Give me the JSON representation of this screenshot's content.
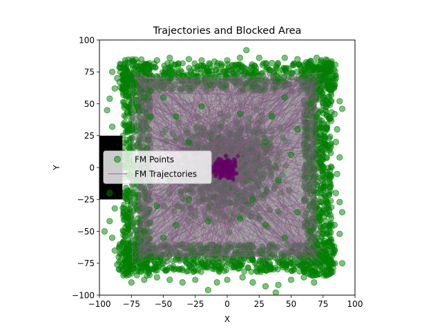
{
  "chart_data": {
    "type": "scatter",
    "title": "Trajectories and Blocked Area",
    "xlabel": "X",
    "ylabel": "Y",
    "xlim": [
      -100,
      100
    ],
    "ylim": [
      -100,
      100
    ],
    "xticks": [
      -100,
      -75,
      -50,
      -25,
      0,
      25,
      50,
      75,
      100
    ],
    "yticks": [
      -100,
      -75,
      -50,
      -25,
      0,
      25,
      50,
      75,
      100
    ],
    "xtick_labels": [
      "−100",
      "−75",
      "−50",
      "−25",
      "0",
      "25",
      "50",
      "75",
      "100"
    ],
    "ytick_labels": [
      "−100",
      "−75",
      "−50",
      "−25",
      "0",
      "25",
      "50",
      "75",
      "100"
    ],
    "grid": false,
    "legend_position": "center-left",
    "blocked_area": {
      "x": [
        -100,
        -82
      ],
      "y": [
        -25,
        25
      ],
      "color": "#000000"
    },
    "dense_core": {
      "x": [
        -15,
        12
      ],
      "y": [
        -14,
        14
      ],
      "color": "#660066"
    },
    "series": [
      {
        "name": "FM Points",
        "kind": "scatter",
        "color": "#008000",
        "alpha": 0.5,
        "points": [
          [
            -90,
            75
          ],
          [
            -78,
            82
          ],
          [
            -65,
            80
          ],
          [
            -55,
            84
          ],
          [
            -45,
            86
          ],
          [
            -30,
            85
          ],
          [
            -20,
            84
          ],
          [
            -10,
            83
          ],
          [
            0,
            84
          ],
          [
            10,
            86
          ],
          [
            15,
            92
          ],
          [
            25,
            86
          ],
          [
            35,
            82
          ],
          [
            45,
            86
          ],
          [
            55,
            85
          ],
          [
            65,
            80
          ],
          [
            70,
            86
          ],
          [
            80,
            75
          ],
          [
            85,
            70
          ],
          [
            88,
            52
          ],
          [
            90,
            46
          ],
          [
            84,
            42
          ],
          [
            86,
            30
          ],
          [
            85,
            20
          ],
          [
            88,
            8
          ],
          [
            86,
            -5
          ],
          [
            85,
            -20
          ],
          [
            88,
            -27
          ],
          [
            90,
            -35
          ],
          [
            84,
            -45
          ],
          [
            88,
            -52
          ],
          [
            82,
            -62
          ],
          [
            90,
            -75
          ],
          [
            78,
            -78
          ],
          [
            70,
            -84
          ],
          [
            68,
            -90
          ],
          [
            60,
            -86
          ],
          [
            50,
            -88
          ],
          [
            40,
            -92
          ],
          [
            38,
            -98
          ],
          [
            30,
            -93
          ],
          [
            20,
            -90
          ],
          [
            12,
            -86
          ],
          [
            0,
            -88
          ],
          [
            -8,
            -90
          ],
          [
            -15,
            -96
          ],
          [
            -25,
            -88
          ],
          [
            -35,
            -90
          ],
          [
            -45,
            -88
          ],
          [
            -55,
            -86
          ],
          [
            -65,
            -88
          ],
          [
            -75,
            -90
          ],
          [
            -78,
            -82
          ],
          [
            -86,
            -76
          ],
          [
            -88,
            -65
          ],
          [
            -90,
            -55
          ],
          [
            -96,
            -50
          ],
          [
            -92,
            -42
          ],
          [
            -88,
            -32
          ],
          [
            -92,
            -20
          ],
          [
            -90,
            32
          ],
          [
            -94,
            45
          ],
          [
            -92,
            54
          ],
          [
            -88,
            62
          ],
          [
            -86,
            70
          ],
          [
            -72,
            65
          ],
          [
            -60,
            60
          ],
          [
            -45,
            70
          ],
          [
            -30,
            72
          ],
          [
            -15,
            75
          ],
          [
            5,
            74
          ],
          [
            20,
            72
          ],
          [
            40,
            70
          ],
          [
            60,
            72
          ],
          [
            72,
            60
          ],
          [
            70,
            40
          ],
          [
            74,
            20
          ],
          [
            72,
            0
          ],
          [
            70,
            -20
          ],
          [
            72,
            -40
          ],
          [
            70,
            -60
          ],
          [
            60,
            -72
          ],
          [
            40,
            -74
          ],
          [
            20,
            -72
          ],
          [
            0,
            -76
          ],
          [
            -20,
            -74
          ],
          [
            -40,
            -72
          ],
          [
            -60,
            -70
          ],
          [
            -72,
            -60
          ],
          [
            -70,
            -40
          ],
          [
            -74,
            -20
          ],
          [
            -75,
            30
          ],
          [
            -70,
            48
          ],
          [
            -40,
            40
          ],
          [
            -20,
            48
          ],
          [
            10,
            42
          ],
          [
            35,
            40
          ],
          [
            55,
            30
          ],
          [
            50,
            10
          ],
          [
            40,
            -10
          ],
          [
            55,
            -35
          ],
          [
            30,
            -45
          ],
          [
            10,
            -40
          ],
          [
            -15,
            -42
          ],
          [
            -40,
            -45
          ],
          [
            -55,
            -30
          ],
          [
            -45,
            -10
          ],
          [
            -60,
            40
          ],
          [
            30,
            20
          ],
          [
            20,
            -25
          ],
          [
            -30,
            20
          ],
          [
            -30,
            -25
          ],
          [
            45,
            55
          ],
          [
            -50,
            55
          ],
          [
            45,
            -55
          ],
          [
            -50,
            -55
          ],
          [
            65,
            50
          ],
          [
            -65,
            -50
          ],
          [
            65,
            -50
          ],
          [
            -65,
            55
          ]
        ]
      },
      {
        "name": "FM Trajectories",
        "kind": "line",
        "color": "#bb66bb",
        "alpha": 0.6
      }
    ]
  }
}
